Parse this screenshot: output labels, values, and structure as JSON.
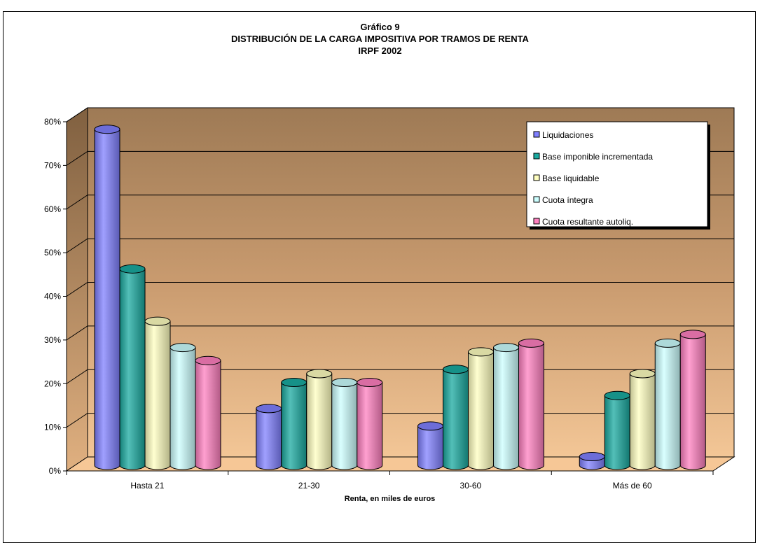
{
  "chart_data": {
    "type": "bar",
    "title": "Gráfico 9",
    "subtitle": "DISTRIBUCIÓN DE LA CARGA IMPOSITIVA POR TRAMOS DE RENTA",
    "subtitle2": "IRPF 2002",
    "xlabel": "Renta, en miles de euros",
    "ylabel": "",
    "categories": [
      "Hasta 21",
      "21-30",
      "30-60",
      "Más de 60"
    ],
    "yticks": [
      "0%",
      "10%",
      "20%",
      "30%",
      "40%",
      "50%",
      "60%",
      "70%",
      "80%"
    ],
    "ylim": [
      0,
      80
    ],
    "legend_position": "top-right",
    "grid": true,
    "series": [
      {
        "name": "Liquidaciones",
        "color": "#8080ff",
        "values": [
          77,
          13,
          9,
          2
        ]
      },
      {
        "name": "Base imponible incrementada",
        "color": "#1aaaa0",
        "values": [
          45,
          19,
          22,
          16
        ]
      },
      {
        "name": "Base liquidable",
        "color": "#ffffc0",
        "values": [
          33,
          21,
          26,
          21
        ]
      },
      {
        "name": "Cuota íntegra",
        "color": "#ccffff",
        "values": [
          27,
          19,
          27,
          28
        ]
      },
      {
        "name": "Cuota resultante autoliq.",
        "color": "#ff80c0",
        "values": [
          24,
          19,
          28,
          30
        ]
      }
    ]
  }
}
